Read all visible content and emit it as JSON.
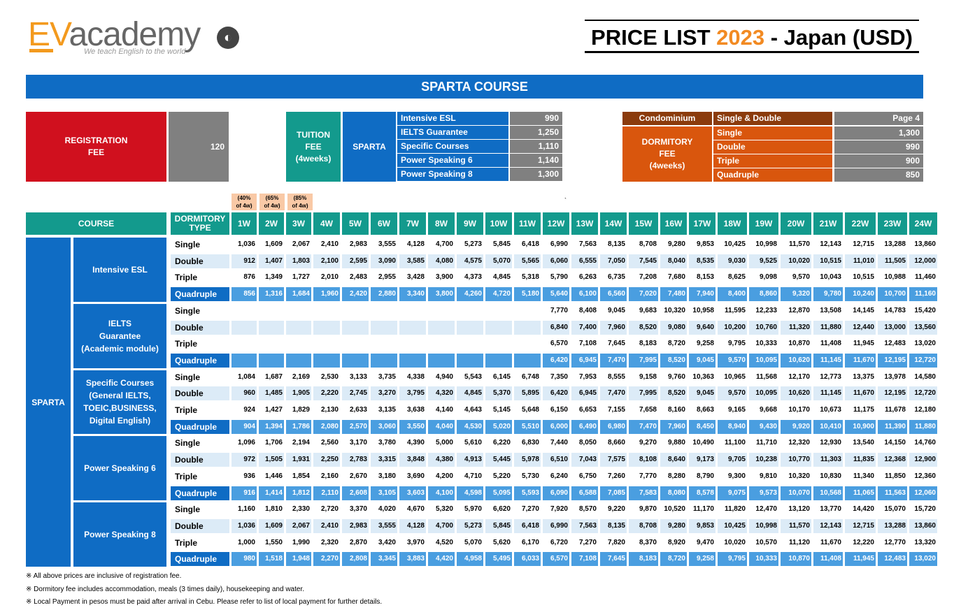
{
  "logo": {
    "brand_ev": "EV",
    "brand_rest": "academy",
    "tagline": "We teach English to the world"
  },
  "title": {
    "prefix": "PRICE LIST ",
    "year": "2023",
    "suffix": " - Japan (USD)"
  },
  "banner": "SPARTA COURSE",
  "registration": {
    "label": "REGISTRATION\nFEE",
    "value": "120"
  },
  "tuition": {
    "label": "TUITION\nFEE\n(4weeks)",
    "program": "SPARTA",
    "items": [
      {
        "name": "Intensive ESL",
        "price": "990"
      },
      {
        "name": "IELTS Guarantee",
        "price": "1,250"
      },
      {
        "name": "Specific Courses",
        "price": "1,110"
      },
      {
        "name": "Power Speaking 6",
        "price": "1,140"
      },
      {
        "name": "Power Speaking 8",
        "price": "1,300"
      }
    ]
  },
  "dormitory": {
    "condo_label": "Condominium",
    "condo_type": "Single & Double",
    "condo_note": "Page 4",
    "label": "DORMITORY\nFEE\n(4weeks)",
    "items": [
      {
        "name": "Single",
        "price": "1,300"
      },
      {
        "name": "Double",
        "price": "990"
      },
      {
        "name": "Triple",
        "price": "900"
      },
      {
        "name": "Quadruple",
        "price": "850"
      }
    ]
  },
  "discounts": [
    "(40%\nof 4w)",
    "(65%\nof 4w)",
    "(85%\nof 4w)"
  ],
  "stray_mark": "`",
  "table": {
    "col_course": "COURSE",
    "col_dorm": "DORMITORY\nTYPE",
    "weeks": [
      "1W",
      "2W",
      "3W",
      "4W",
      "5W",
      "6W",
      "7W",
      "8W",
      "9W",
      "10W",
      "11W",
      "12W",
      "13W",
      "14W",
      "15W",
      "16W",
      "17W",
      "18W",
      "19W",
      "20W",
      "21W",
      "22W",
      "23W",
      "24W"
    ],
    "program": "SPARTA",
    "courses": [
      {
        "name": "Intensive ESL",
        "rows": [
          {
            "type": "Single",
            "p": [
              "1,036",
              "1,609",
              "2,067",
              "2,410",
              "2,983",
              "3,555",
              "4,128",
              "4,700",
              "5,273",
              "5,845",
              "6,418",
              "6,990",
              "7,563",
              "8,135",
              "8,708",
              "9,280",
              "9,853",
              "10,425",
              "10,998",
              "11,570",
              "12,143",
              "12,715",
              "13,288",
              "13,860"
            ]
          },
          {
            "type": "Double",
            "p": [
              "912",
              "1,407",
              "1,803",
              "2,100",
              "2,595",
              "3,090",
              "3,585",
              "4,080",
              "4,575",
              "5,070",
              "5,565",
              "6,060",
              "6,555",
              "7,050",
              "7,545",
              "8,040",
              "8,535",
              "9,030",
              "9,525",
              "10,020",
              "10,515",
              "11,010",
              "11,505",
              "12,000"
            ]
          },
          {
            "type": "Triple",
            "p": [
              "876",
              "1,349",
              "1,727",
              "2,010",
              "2,483",
              "2,955",
              "3,428",
              "3,900",
              "4,373",
              "4,845",
              "5,318",
              "5,790",
              "6,263",
              "6,735",
              "7,208",
              "7,680",
              "8,153",
              "8,625",
              "9,098",
              "9,570",
              "10,043",
              "10,515",
              "10,988",
              "11,460"
            ]
          },
          {
            "type": "Quadruple",
            "p": [
              "856",
              "1,316",
              "1,684",
              "1,960",
              "2,420",
              "2,880",
              "3,340",
              "3,800",
              "4,260",
              "4,720",
              "5,180",
              "5,640",
              "6,100",
              "6,560",
              "7,020",
              "7,480",
              "7,940",
              "8,400",
              "8,860",
              "9,320",
              "9,780",
              "10,240",
              "10,700",
              "11,160"
            ]
          }
        ]
      },
      {
        "name": "IELTS\nGuarantee\n(Academic module)",
        "rows": [
          {
            "type": "Single",
            "p": [
              "",
              "",
              "",
              "",
              "",
              "",
              "",
              "",
              "",
              "",
              "",
              "7,770",
              "8,408",
              "9,045",
              "9,683",
              "10,320",
              "10,958",
              "11,595",
              "12,233",
              "12,870",
              "13,508",
              "14,145",
              "14,783",
              "15,420"
            ]
          },
          {
            "type": "Double",
            "p": [
              "",
              "",
              "",
              "",
              "",
              "",
              "",
              "",
              "",
              "",
              "",
              "6,840",
              "7,400",
              "7,960",
              "8,520",
              "9,080",
              "9,640",
              "10,200",
              "10,760",
              "11,320",
              "11,880",
              "12,440",
              "13,000",
              "13,560"
            ]
          },
          {
            "type": "Triple",
            "p": [
              "",
              "",
              "",
              "",
              "",
              "",
              "",
              "",
              "",
              "",
              "",
              "6,570",
              "7,108",
              "7,645",
              "8,183",
              "8,720",
              "9,258",
              "9,795",
              "10,333",
              "10,870",
              "11,408",
              "11,945",
              "12,483",
              "13,020"
            ]
          },
          {
            "type": "Quadruple",
            "p": [
              "",
              "",
              "",
              "",
              "",
              "",
              "",
              "",
              "",
              "",
              "",
              "6,420",
              "6,945",
              "7,470",
              "7,995",
              "8,520",
              "9,045",
              "9,570",
              "10,095",
              "10,620",
              "11,145",
              "11,670",
              "12,195",
              "12,720"
            ]
          }
        ]
      },
      {
        "name": "Specific Courses\n(General IELTS,\nTOEIC,BUSINESS,\nDigital English)",
        "rows": [
          {
            "type": "Single",
            "p": [
              "1,084",
              "1,687",
              "2,169",
              "2,530",
              "3,133",
              "3,735",
              "4,338",
              "4,940",
              "5,543",
              "6,145",
              "6,748",
              "7,350",
              "7,953",
              "8,555",
              "9,158",
              "9,760",
              "10,363",
              "10,965",
              "11,568",
              "12,170",
              "12,773",
              "13,375",
              "13,978",
              "14,580"
            ]
          },
          {
            "type": "Double",
            "p": [
              "960",
              "1,485",
              "1,905",
              "2,220",
              "2,745",
              "3,270",
              "3,795",
              "4,320",
              "4,845",
              "5,370",
              "5,895",
              "6,420",
              "6,945",
              "7,470",
              "7,995",
              "8,520",
              "9,045",
              "9,570",
              "10,095",
              "10,620",
              "11,145",
              "11,670",
              "12,195",
              "12,720"
            ]
          },
          {
            "type": "Triple",
            "p": [
              "924",
              "1,427",
              "1,829",
              "2,130",
              "2,633",
              "3,135",
              "3,638",
              "4,140",
              "4,643",
              "5,145",
              "5,648",
              "6,150",
              "6,653",
              "7,155",
              "7,658",
              "8,160",
              "8,663",
              "9,165",
              "9,668",
              "10,170",
              "10,673",
              "11,175",
              "11,678",
              "12,180"
            ]
          },
          {
            "type": "Quadruple",
            "p": [
              "904",
              "1,394",
              "1,786",
              "2,080",
              "2,570",
              "3,060",
              "3,550",
              "4,040",
              "4,530",
              "5,020",
              "5,510",
              "6,000",
              "6,490",
              "6,980",
              "7,470",
              "7,960",
              "8,450",
              "8,940",
              "9,430",
              "9,920",
              "10,410",
              "10,900",
              "11,390",
              "11,880"
            ]
          }
        ]
      },
      {
        "name": "Power Speaking 6",
        "rows": [
          {
            "type": "Single",
            "p": [
              "1,096",
              "1,706",
              "2,194",
              "2,560",
              "3,170",
              "3,780",
              "4,390",
              "5,000",
              "5,610",
              "6,220",
              "6,830",
              "7,440",
              "8,050",
              "8,660",
              "9,270",
              "9,880",
              "10,490",
              "11,100",
              "11,710",
              "12,320",
              "12,930",
              "13,540",
              "14,150",
              "14,760"
            ]
          },
          {
            "type": "Double",
            "p": [
              "972",
              "1,505",
              "1,931",
              "2,250",
              "2,783",
              "3,315",
              "3,848",
              "4,380",
              "4,913",
              "5,445",
              "5,978",
              "6,510",
              "7,043",
              "7,575",
              "8,108",
              "8,640",
              "9,173",
              "9,705",
              "10,238",
              "10,770",
              "11,303",
              "11,835",
              "12,368",
              "12,900"
            ]
          },
          {
            "type": "Triple",
            "p": [
              "936",
              "1,446",
              "1,854",
              "2,160",
              "2,670",
              "3,180",
              "3,690",
              "4,200",
              "4,710",
              "5,220",
              "5,730",
              "6,240",
              "6,750",
              "7,260",
              "7,770",
              "8,280",
              "8,790",
              "9,300",
              "9,810",
              "10,320",
              "10,830",
              "11,340",
              "11,850",
              "12,360"
            ]
          },
          {
            "type": "Quadruple",
            "p": [
              "916",
              "1,414",
              "1,812",
              "2,110",
              "2,608",
              "3,105",
              "3,603",
              "4,100",
              "4,598",
              "5,095",
              "5,593",
              "6,090",
              "6,588",
              "7,085",
              "7,583",
              "8,080",
              "8,578",
              "9,075",
              "9,573",
              "10,070",
              "10,568",
              "11,065",
              "11,563",
              "12,060"
            ]
          }
        ]
      },
      {
        "name": "Power Speaking 8",
        "rows": [
          {
            "type": "Single",
            "p": [
              "1,160",
              "1,810",
              "2,330",
              "2,720",
              "3,370",
              "4,020",
              "4,670",
              "5,320",
              "5,970",
              "6,620",
              "7,270",
              "7,920",
              "8,570",
              "9,220",
              "9,870",
              "10,520",
              "11,170",
              "11,820",
              "12,470",
              "13,120",
              "13,770",
              "14,420",
              "15,070",
              "15,720"
            ]
          },
          {
            "type": "Double",
            "p": [
              "1,036",
              "1,609",
              "2,067",
              "2,410",
              "2,983",
              "3,555",
              "4,128",
              "4,700",
              "5,273",
              "5,845",
              "6,418",
              "6,990",
              "7,563",
              "8,135",
              "8,708",
              "9,280",
              "9,853",
              "10,425",
              "10,998",
              "11,570",
              "12,143",
              "12,715",
              "13,288",
              "13,860"
            ]
          },
          {
            "type": "Triple",
            "p": [
              "1,000",
              "1,550",
              "1,990",
              "2,320",
              "2,870",
              "3,420",
              "3,970",
              "4,520",
              "5,070",
              "5,620",
              "6,170",
              "6,720",
              "7,270",
              "7,820",
              "8,370",
              "8,920",
              "9,470",
              "10,020",
              "10,570",
              "11,120",
              "11,670",
              "12,220",
              "12,770",
              "13,320"
            ]
          },
          {
            "type": "Quadruple",
            "p": [
              "980",
              "1,518",
              "1,948",
              "2,270",
              "2,808",
              "3,345",
              "3,883",
              "4,420",
              "4,958",
              "5,495",
              "6,033",
              "6,570",
              "7,108",
              "7,645",
              "8,183",
              "8,720",
              "9,258",
              "9,795",
              "10,333",
              "10,870",
              "11,408",
              "11,945",
              "12,483",
              "13,020"
            ]
          }
        ]
      }
    ]
  },
  "notes": [
    "※ All above prices are inclusive of registration fee.",
    "※ Dormitory fee includes accommodation, meals (3 times daily), housekeeping and water.",
    "※ Local Payment in pesos must be paid after arrival in Cebu. Please refer to list of local payment for further details."
  ],
  "colors": {
    "blue": "#0f6cc4",
    "teal": "#139a8d",
    "red": "#d0101e",
    "grey": "#808080",
    "brown": "#8b3b0c",
    "orange": "#d9560d",
    "light": "#dcebf7",
    "mid": "#4a9ee0"
  }
}
